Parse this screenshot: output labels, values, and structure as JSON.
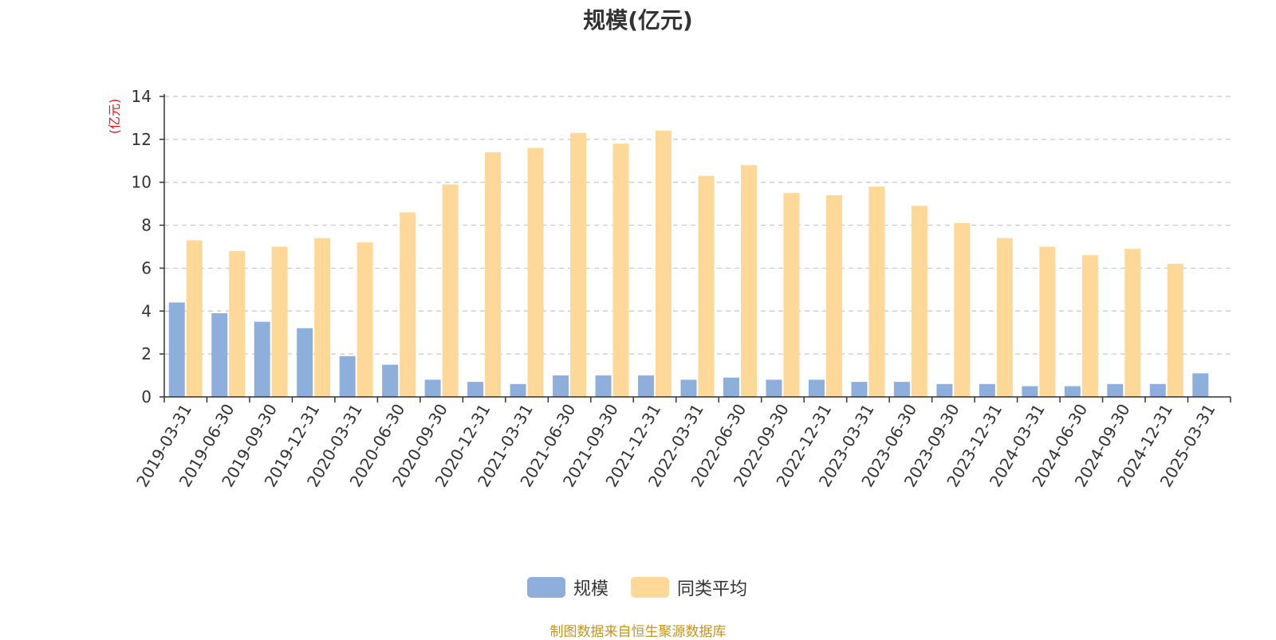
{
  "title": "规模(亿元)",
  "source_note": "制图数据来自恒生聚源数据库",
  "colors": {
    "series_0": "#8eafdc",
    "series_1": "#fed898",
    "ylabel": "#e8141c",
    "grid": "#c8c8c8",
    "axis": "#333333"
  },
  "chart_data": {
    "type": "bar",
    "title": "规模(亿元)",
    "ylabel": "(亿元)",
    "xlabel": "",
    "ylim": [
      0,
      14
    ],
    "yticks": [
      0,
      2,
      4,
      6,
      8,
      10,
      12,
      14
    ],
    "grid": true,
    "legend_position": "bottom-center",
    "categories": [
      "2019-03-31",
      "2019-06-30",
      "2019-09-30",
      "2019-12-31",
      "2020-03-31",
      "2020-06-30",
      "2020-09-30",
      "2020-12-31",
      "2021-03-31",
      "2021-06-30",
      "2021-09-30",
      "2021-12-31",
      "2022-03-31",
      "2022-06-30",
      "2022-09-30",
      "2022-12-31",
      "2023-03-31",
      "2023-06-30",
      "2023-09-30",
      "2023-12-31",
      "2024-03-31",
      "2024-06-30",
      "2024-09-30",
      "2024-12-31",
      "2025-03-31"
    ],
    "series": [
      {
        "name": "规模",
        "values": [
          4.4,
          3.9,
          3.5,
          3.2,
          1.9,
          1.5,
          0.8,
          0.7,
          0.6,
          1.0,
          1.0,
          1.0,
          0.8,
          0.9,
          0.8,
          0.8,
          0.7,
          0.7,
          0.6,
          0.6,
          0.5,
          0.5,
          0.6,
          0.6,
          1.1
        ]
      },
      {
        "name": "同类平均",
        "values": [
          7.3,
          6.8,
          7.0,
          7.4,
          7.2,
          8.6,
          9.9,
          11.4,
          11.6,
          12.3,
          11.8,
          12.4,
          10.3,
          10.8,
          9.5,
          9.4,
          9.8,
          8.9,
          8.1,
          7.4,
          7.0,
          6.6,
          6.9,
          6.2,
          null
        ]
      }
    ]
  }
}
